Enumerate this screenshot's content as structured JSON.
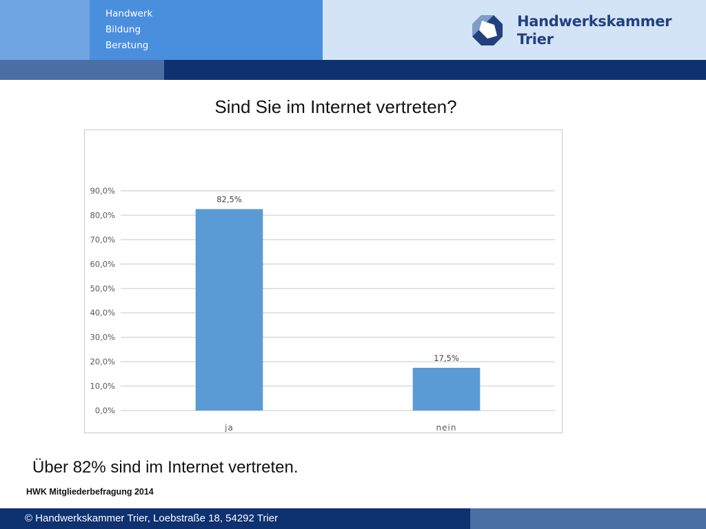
{
  "header": {
    "tagline": [
      "Handwerk",
      "Bildung",
      "Beratung"
    ],
    "brand_line1": "Handwerkskammer",
    "brand_line2": "Trier",
    "colors": {
      "tagline_bg": "#4a8fde",
      "brand_bg": "#d3e4f7",
      "dark_band": "#0e3170"
    }
  },
  "slide": {
    "title": "Sind Sie im Internet vertreten?",
    "summary": "Über 82% sind im Internet vertreten.",
    "source": "HWK Mitgliederbefragung 2014"
  },
  "footer": {
    "text": "© Handwerkskammer Trier, Loebstraße 18, 54292 Trier"
  },
  "chart_data": {
    "type": "bar",
    "title": "",
    "xlabel": "",
    "ylabel": "",
    "categories": [
      "ja",
      "nein"
    ],
    "values": [
      82.5,
      17.5
    ],
    "data_labels": [
      "82,5%",
      "17,5%"
    ],
    "ylim": [
      0,
      90
    ],
    "yticks": [
      0,
      10,
      20,
      30,
      40,
      50,
      60,
      70,
      80,
      90
    ],
    "ytick_labels": [
      "0,0%",
      "10,0%",
      "20,0%",
      "30,0%",
      "40,0%",
      "50,0%",
      "60,0%",
      "70,0%",
      "80,0%",
      "90,0%"
    ],
    "grid": true,
    "legend": "none",
    "bar_color": "#5b9bd5"
  }
}
